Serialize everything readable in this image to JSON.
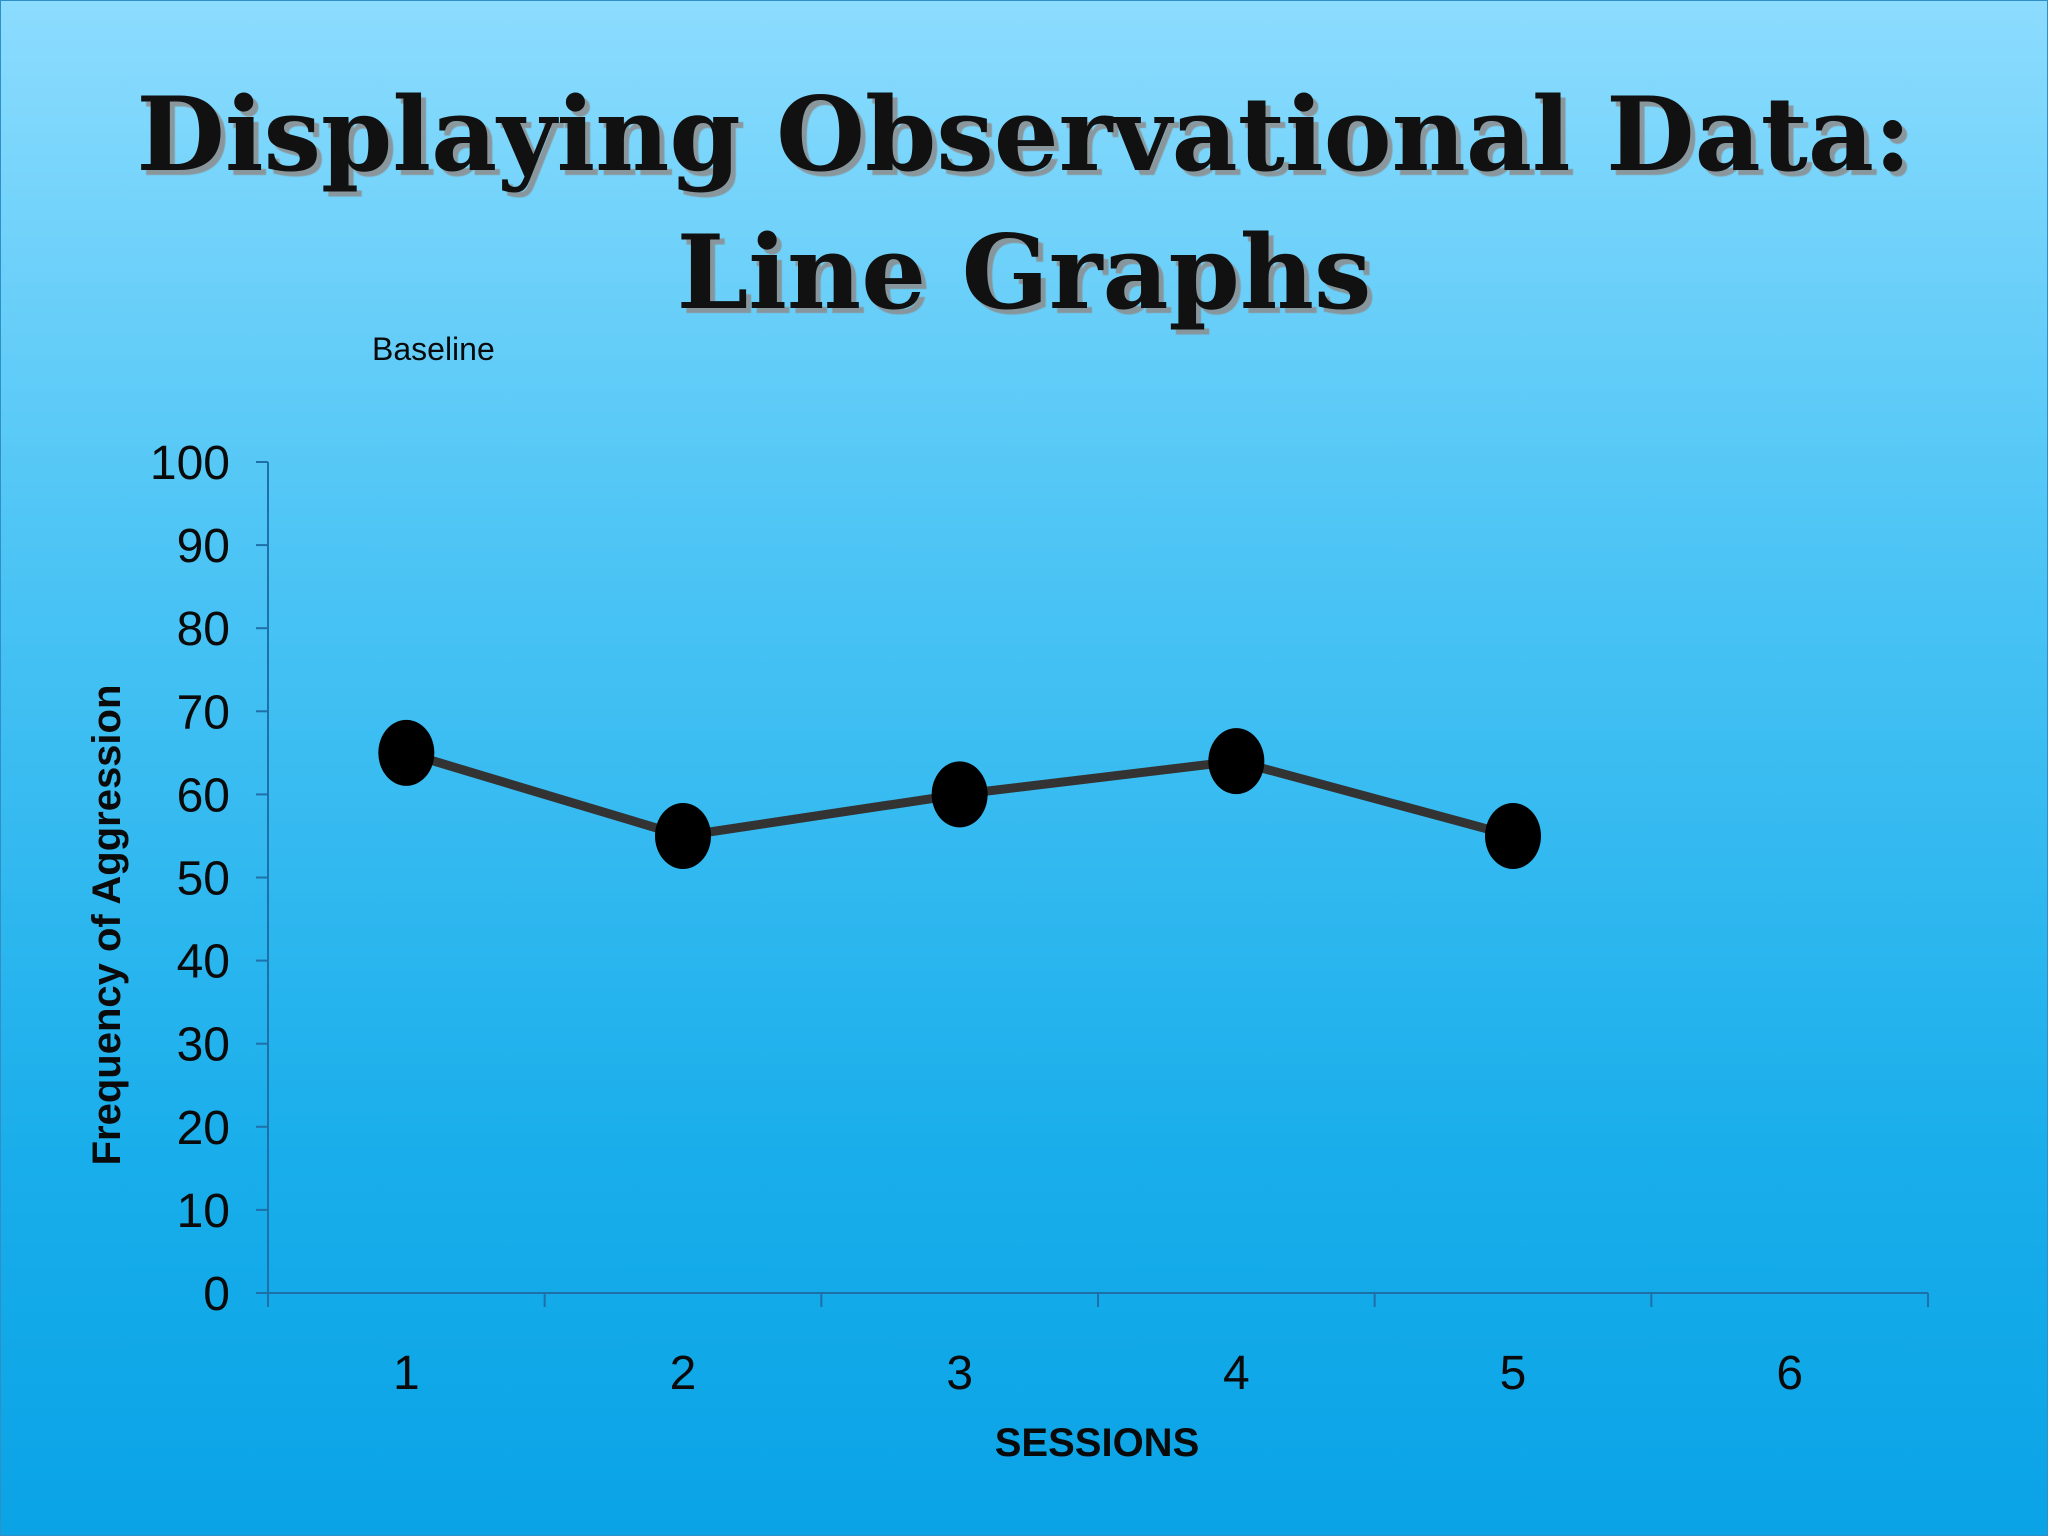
{
  "chart_data": {
    "type": "line",
    "title_lines": [
      "Displaying Observational Data:",
      "Line Graphs"
    ],
    "annotation": "Baseline",
    "xlabel": "SESSIONS",
    "ylabel": "Frequency of Aggression",
    "categories": [
      "1",
      "2",
      "3",
      "4",
      "5",
      "6"
    ],
    "ylim": [
      0,
      100
    ],
    "yticks": [
      0,
      10,
      20,
      30,
      40,
      50,
      60,
      70,
      80,
      90,
      100
    ],
    "grid": false,
    "legend": "none",
    "series": [
      {
        "x": [
          1,
          2,
          3,
          4,
          5
        ],
        "values": [
          65,
          55,
          60,
          64,
          55
        ],
        "color": "#333333",
        "marker_color": "#000000"
      }
    ],
    "axis_color": "#1f6fa8"
  }
}
